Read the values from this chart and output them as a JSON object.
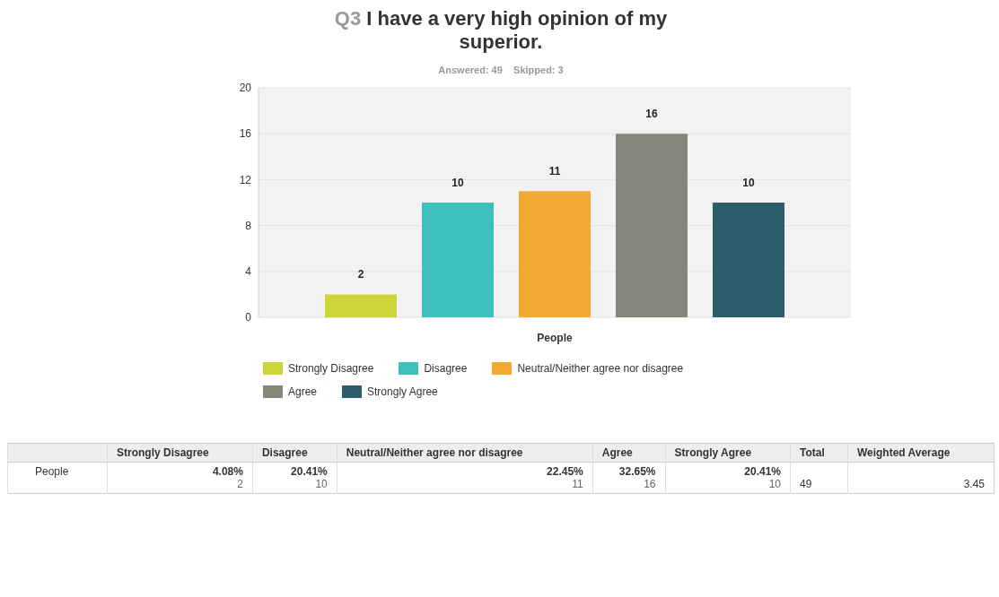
{
  "chart_data": {
    "type": "bar",
    "title": "Q3 I have a very high opinion of my superior.",
    "subtitle": "Answered: 49    Skipped: 3",
    "categories": [
      "People"
    ],
    "series": [
      {
        "name": "Strongly Disagree",
        "color": "#cdd43b",
        "values": [
          2
        ]
      },
      {
        "name": "Disagree",
        "color": "#3dbfc0",
        "values": [
          10
        ]
      },
      {
        "name": "Neutral/Neither agree nor disagree",
        "color": "#f2aa33",
        "values": [
          11
        ]
      },
      {
        "name": "Agree",
        "color": "#86877b",
        "values": [
          16
        ]
      },
      {
        "name": "Strongly Agree",
        "color": "#2d5d6a",
        "values": [
          10
        ]
      }
    ],
    "ylim": [
      0,
      20
    ],
    "yticks": [
      0,
      4,
      8,
      12,
      16,
      20
    ],
    "grid": "y",
    "legend": "bottom",
    "data_labels": true,
    "annotations": [
      "4.08%",
      "20.41%",
      "22.45%",
      "32.65%",
      "20.41%",
      "2",
      "10",
      "11",
      "16",
      "10",
      "Total",
      "49",
      "Weighted Average",
      "3.45"
    ]
  }
}
